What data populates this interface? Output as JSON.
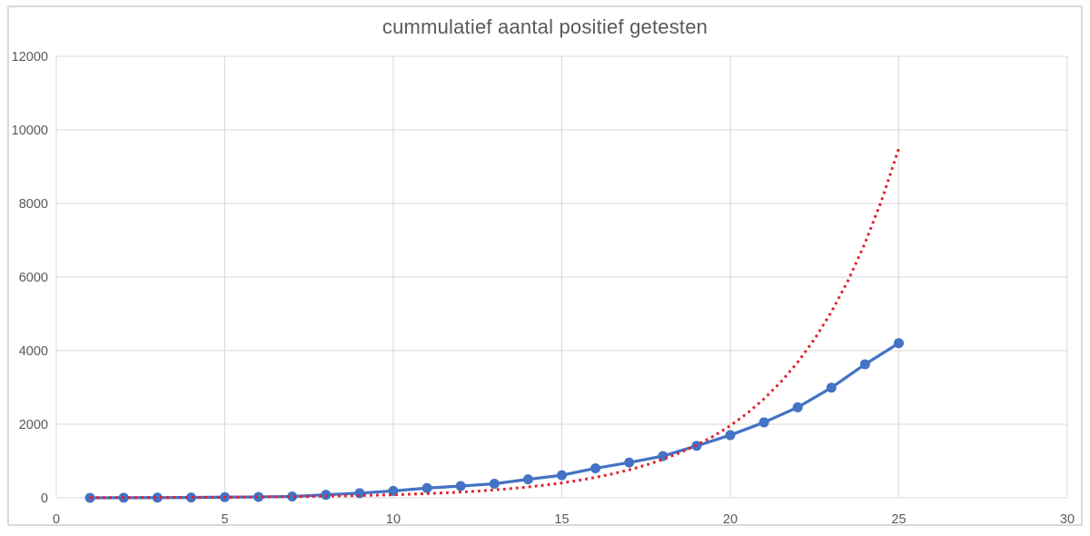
{
  "title": "cummulatief aantal positief getesten",
  "colors": {
    "grid": "#d9d9d9",
    "plot_border": "#d9d9d9",
    "card_border": "#d9d9d9",
    "axis_text": "#595959",
    "title_text": "#595959",
    "series_blue": "#4472c4",
    "series_red": "#e02030",
    "background": "#ffffff"
  },
  "chart_data": {
    "type": "line",
    "title": "cummulatief aantal positief getesten",
    "xlabel": "",
    "ylabel": "",
    "xlim": [
      0,
      30
    ],
    "ylim": [
      0,
      12000
    ],
    "x_ticks": [
      0,
      5,
      10,
      15,
      20,
      25,
      30
    ],
    "y_ticks": [
      0,
      2000,
      4000,
      6000,
      8000,
      10000,
      12000
    ],
    "grid": true,
    "legend": "none",
    "series": [
      {
        "name": "cumulative-positive-tests",
        "style": "solid-line-with-markers",
        "color": "#4472c4",
        "x": [
          1,
          2,
          3,
          4,
          5,
          6,
          7,
          8,
          9,
          10,
          11,
          12,
          13,
          14,
          15,
          16,
          17,
          18,
          19,
          20,
          21,
          22,
          23,
          24,
          25
        ],
        "values": [
          1,
          2,
          7,
          10,
          18,
          24,
          38,
          82,
          128,
          188,
          265,
          321,
          382,
          503,
          614,
          804,
          959,
          1135,
          1413,
          1705,
          2051,
          2460,
          2994,
          3631,
          4204
        ]
      },
      {
        "name": "exponential-trendline",
        "style": "dotted-line",
        "color": "#e02030",
        "x": [
          1,
          1.5,
          2,
          2.5,
          3,
          3.5,
          4,
          4.5,
          5,
          5.5,
          6,
          6.5,
          7,
          7.5,
          8,
          8.5,
          9,
          9.5,
          10,
          10.5,
          11,
          11.5,
          12,
          12.5,
          13,
          13.5,
          14,
          14.5,
          15,
          15.5,
          16,
          16.5,
          17,
          17.5,
          18,
          18.5,
          19,
          19.5,
          20,
          20.5,
          21,
          21.5,
          22,
          22.5,
          23,
          23.5,
          24,
          24.5,
          25
        ],
        "values": [
          5,
          6,
          7,
          8,
          9,
          11,
          13,
          15,
          17,
          20,
          24,
          28,
          33,
          38,
          45,
          52,
          61,
          72,
          84,
          98,
          115,
          134,
          157,
          184,
          216,
          253,
          296,
          346,
          405,
          475,
          556,
          651,
          762,
          892,
          1044,
          1223,
          1431,
          1676,
          1962,
          2297,
          2689,
          3149,
          3686,
          4316,
          5053,
          5916,
          6927,
          8109,
          9494
        ]
      }
    ]
  }
}
